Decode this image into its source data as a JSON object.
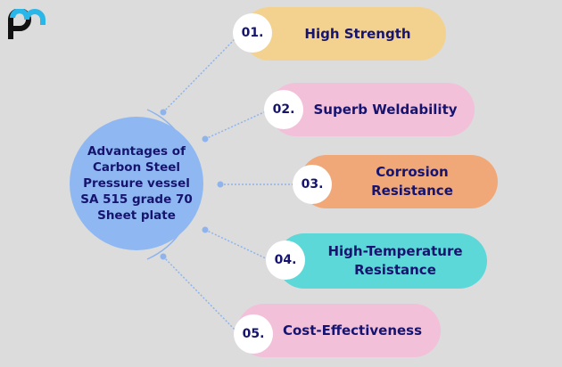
{
  "hub": {
    "title_lines": [
      "Advantages of",
      "Carbon Steel",
      "Pressure vessel",
      "SA 515 grade 70",
      "Sheet plate"
    ]
  },
  "items": [
    {
      "num": "01.",
      "lines": [
        "High Strength"
      ],
      "color": "#f3d28f"
    },
    {
      "num": "02.",
      "lines": [
        "Superb Weldability"
      ],
      "color": "#f2c0d9"
    },
    {
      "num": "03.",
      "lines": [
        "Corrosion",
        "Resistance"
      ],
      "color": "#f0a878"
    },
    {
      "num": "04.",
      "lines": [
        "High-Temperature",
        "Resistance"
      ],
      "color": "#5cd8d8"
    },
    {
      "num": "05.",
      "lines": [
        "Cost-Effectiveness"
      ],
      "color": "#f2c0d9"
    }
  ],
  "colors": {
    "background": "#dcdcdc",
    "hub": "#8fb8f2",
    "text": "#16146e",
    "connector": "#8fb4ec",
    "logo_accent": "#29b6e8"
  },
  "logo": {
    "icon": "pm-logo"
  }
}
